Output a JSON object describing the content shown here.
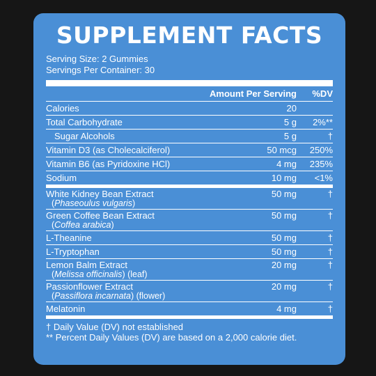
{
  "title": "SUPPLEMENT FACTS",
  "serving_size": "Serving Size: 2 Gummies",
  "servings_per_container": "Servings Per Container: 30",
  "header": {
    "amount": "Amount Per Serving",
    "dv": "%DV"
  },
  "group1": [
    {
      "name": "Calories",
      "amount": "20",
      "dv": ""
    },
    {
      "name": "Total Carbohydrate",
      "amount": "5 g",
      "dv": "2%**"
    },
    {
      "name": "Sugar Alcohols",
      "amount": "5 g",
      "dv": "†",
      "indent": true
    },
    {
      "name": "Vitamin D3 (as Cholecalciferol)",
      "amount": "50 mcg",
      "dv": "250%"
    },
    {
      "name": "Vitamin B6 (as Pyridoxine HCl)",
      "amount": "4 mg",
      "dv": "235%"
    },
    {
      "name": "Sodium",
      "amount": "10 mg",
      "dv": "<1%"
    }
  ],
  "group2": [
    {
      "name": "White Kidney Bean Extract",
      "sub_open": "(",
      "sub_italic": "Phaseoulus vulgaris",
      "sub_close": ")",
      "amount": "50 mg",
      "dv": "†"
    },
    {
      "name": "Green Coffee Bean Extract",
      "sub_open": "(",
      "sub_italic": "Coffea arabica",
      "sub_close": ")",
      "amount": "50 mg",
      "dv": "†"
    },
    {
      "name": "L-Theanine",
      "amount": "50 mg",
      "dv": "†"
    },
    {
      "name": "L-Tryptophan",
      "amount": "50 mg",
      "dv": "†"
    },
    {
      "name": "Lemon Balm Extract",
      "sub_open": "(",
      "sub_italic": "Melissa officinalis",
      "sub_close": ") (leaf)",
      "amount": "20 mg",
      "dv": "†"
    },
    {
      "name": "Passionflower Extract",
      "sub_open": "(",
      "sub_italic": "Passiflora incarnata",
      "sub_close": ") (flower)",
      "amount": "20 mg",
      "dv": "†"
    },
    {
      "name": "Melatonin",
      "amount": "4 mg",
      "dv": "†"
    }
  ],
  "footnotes": [
    "†  Daily Value (DV) not established",
    "** Percent Daily Values (DV) are based on a 2,000 calorie diet."
  ],
  "colors": {
    "panel": "#4a8fd6",
    "background": "#161616",
    "text": "#ffffff"
  }
}
